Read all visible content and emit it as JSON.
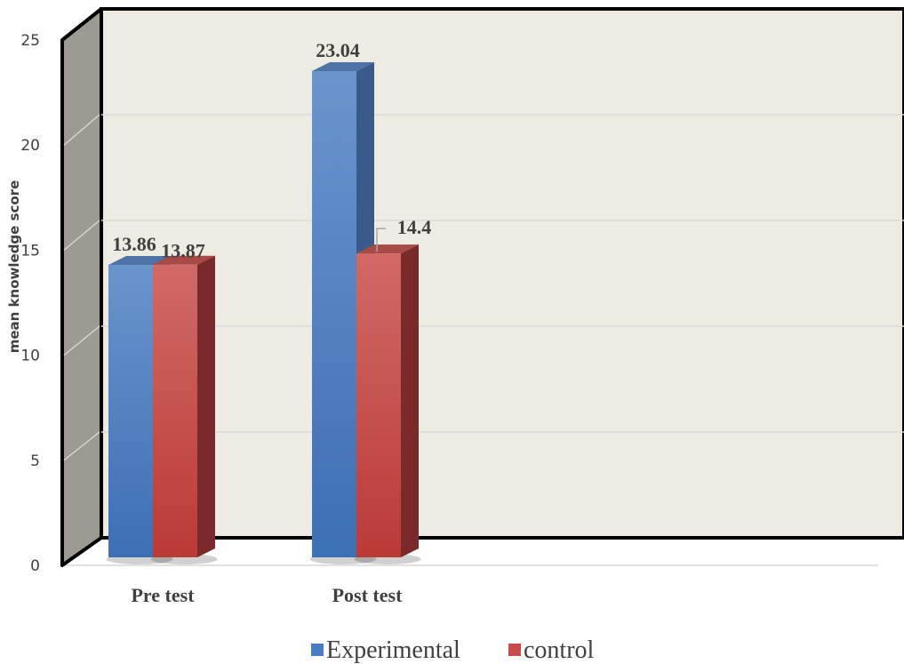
{
  "chart_data": {
    "type": "bar",
    "style": "3d-clustered-column",
    "categories": [
      "Pre test",
      "Post test"
    ],
    "series": [
      {
        "name": "Experimental",
        "color": "#4a7cc4",
        "values": [
          13.86,
          23.04
        ],
        "labels": [
          "13.86",
          "23.04"
        ]
      },
      {
        "name": "control",
        "color": "#c94a4a",
        "values": [
          13.87,
          14.4
        ],
        "labels": [
          "13.87",
          "14.4"
        ]
      }
    ],
    "ylabel": "mean knowledge score",
    "ylim": [
      0,
      25
    ],
    "yticks": [
      "0",
      "5",
      "10",
      "15",
      "20",
      "25"
    ],
    "grid": true,
    "legend_position": "bottom",
    "colors": {
      "back_wall": "#eeebe2",
      "side_wall": "#9c9b92",
      "frame": "#000000",
      "gridline": "#d9d9d9"
    }
  }
}
